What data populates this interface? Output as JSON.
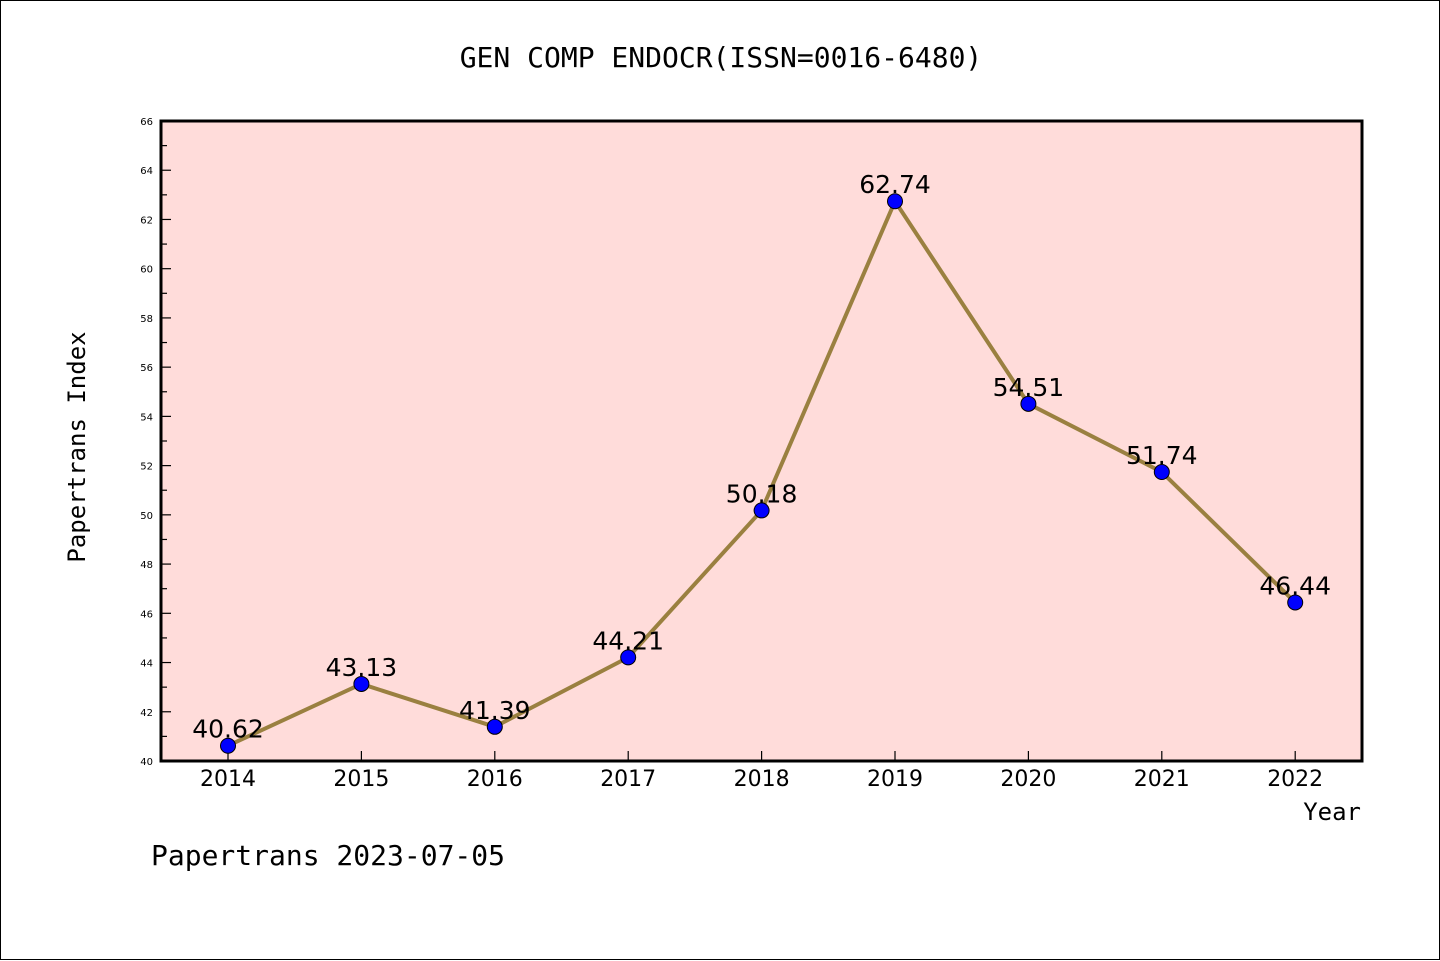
{
  "chart_data": {
    "type": "line",
    "title": "GEN COMP ENDOCR(ISSN=0016-6480)",
    "xlabel": "Year",
    "ylabel": "Papertrans Index",
    "categories": [
      "2014",
      "2015",
      "2016",
      "2017",
      "2018",
      "2019",
      "2020",
      "2021",
      "2022"
    ],
    "values": [
      40.62,
      43.13,
      41.39,
      44.21,
      50.18,
      62.74,
      54.51,
      51.74,
      46.44
    ],
    "data_labels": [
      "40.62",
      "43.13",
      "41.39",
      "44.21",
      "50.18",
      "62.74",
      "54.51",
      "51.74",
      "46.44"
    ],
    "ylim": [
      40,
      66
    ],
    "yticks": [
      40,
      42,
      44,
      46,
      48,
      50,
      52,
      54,
      56,
      58,
      60,
      62,
      64,
      66
    ],
    "grid": false,
    "legend": "none",
    "colors": {
      "plot_background": "#FFDCDA",
      "line": "#9A8040",
      "marker": "#0000FF"
    }
  },
  "footer": "Papertrans 2023-07-05"
}
